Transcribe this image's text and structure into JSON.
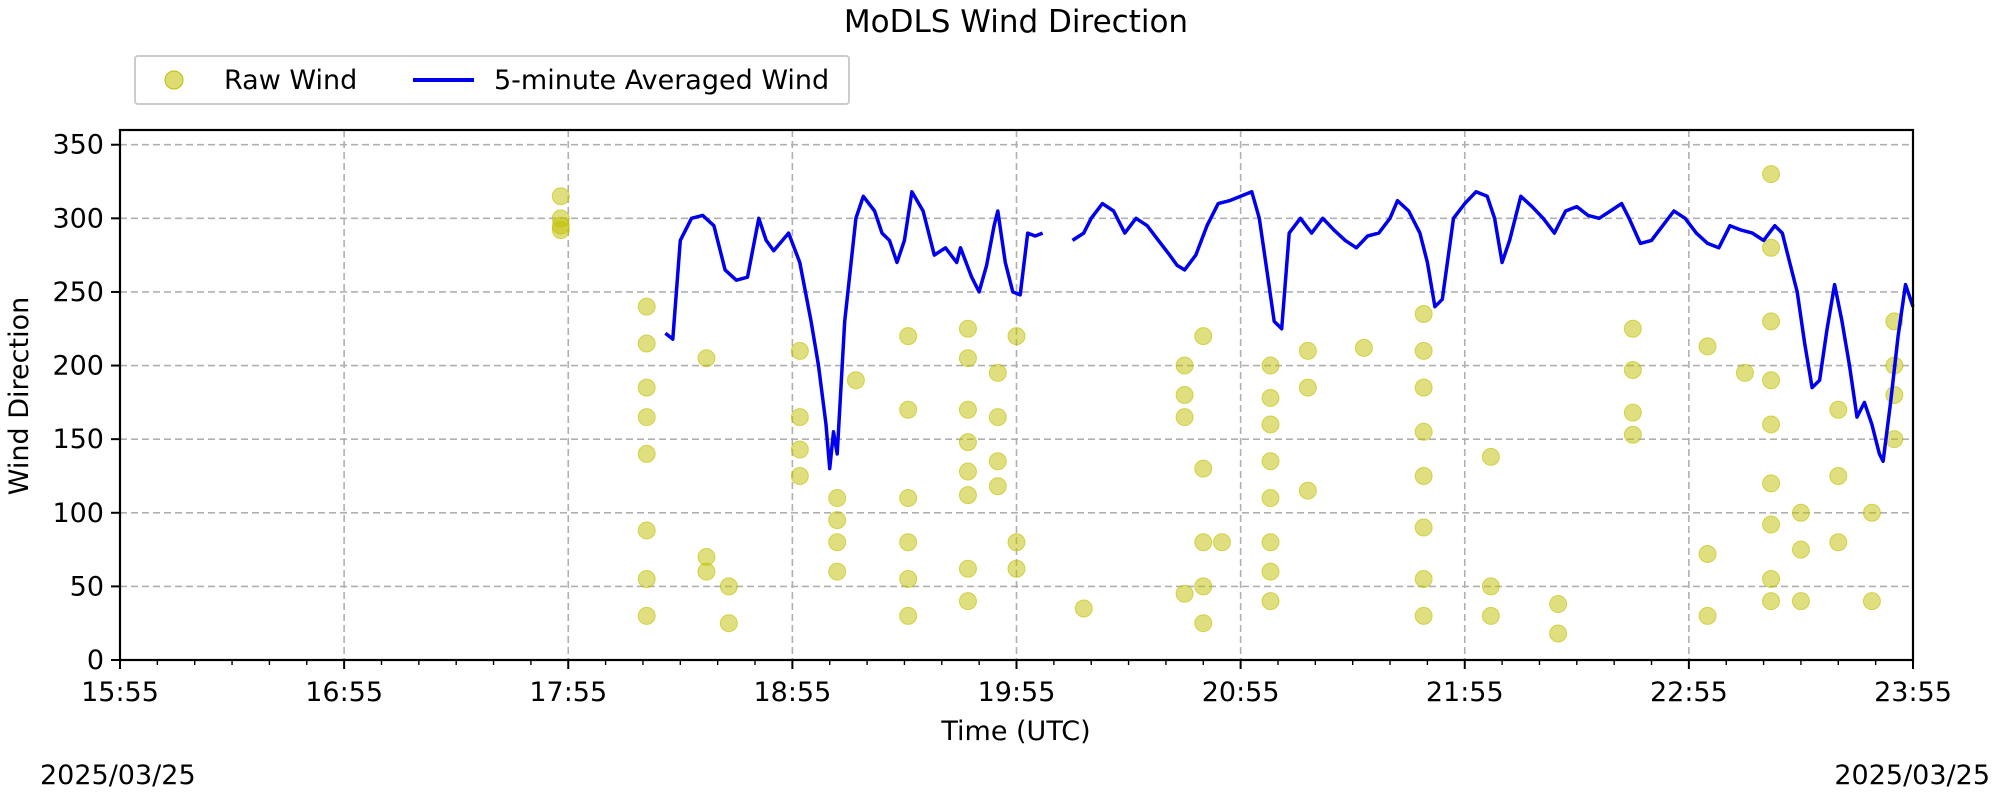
{
  "chart_data": {
    "type": "scatter",
    "title": "MoDLS Wind Direction",
    "xlabel": "Time (UTC)",
    "ylabel": "Wind Direction",
    "xlim": [
      "15:55",
      "23:55"
    ],
    "ylim": [
      0,
      360
    ],
    "x_ticks": [
      "15:55",
      "16:55",
      "17:55",
      "18:55",
      "19:55",
      "20:55",
      "21:55",
      "22:55",
      "23:55"
    ],
    "y_ticks": [
      0,
      50,
      100,
      150,
      200,
      250,
      300,
      350
    ],
    "grid": true,
    "legend": {
      "placement": "top-left, above plot",
      "entries": [
        "Raw Wind",
        "5-minute Averaged Wind"
      ]
    },
    "colors": {
      "raw": "#bfbf00",
      "avg": "#0000ee"
    },
    "series": [
      {
        "name": "Raw Wind",
        "kind": "scatter",
        "points": [
          [
            "17:53",
            315
          ],
          [
            "17:53",
            300
          ],
          [
            "17:53",
            295
          ],
          [
            "17:53",
            292
          ],
          [
            "18:16",
            240
          ],
          [
            "18:16",
            215
          ],
          [
            "18:16",
            185
          ],
          [
            "18:16",
            165
          ],
          [
            "18:16",
            140
          ],
          [
            "18:16",
            88
          ],
          [
            "18:16",
            55
          ],
          [
            "18:16",
            30
          ],
          [
            "18:32",
            205
          ],
          [
            "18:32",
            70
          ],
          [
            "18:32",
            60
          ],
          [
            "18:38",
            50
          ],
          [
            "18:38",
            25
          ],
          [
            "18:57",
            210
          ],
          [
            "18:57",
            165
          ],
          [
            "18:57",
            143
          ],
          [
            "18:57",
            125
          ],
          [
            "19:07",
            110
          ],
          [
            "19:07",
            95
          ],
          [
            "19:07",
            80
          ],
          [
            "19:07",
            60
          ],
          [
            "19:12",
            190
          ],
          [
            "19:26",
            220
          ],
          [
            "19:26",
            170
          ],
          [
            "19:26",
            110
          ],
          [
            "19:26",
            80
          ],
          [
            "19:26",
            55
          ],
          [
            "19:26",
            30
          ],
          [
            "19:42",
            225
          ],
          [
            "19:42",
            205
          ],
          [
            "19:42",
            170
          ],
          [
            "19:42",
            148
          ],
          [
            "19:42",
            128
          ],
          [
            "19:42",
            112
          ],
          [
            "19:42",
            62
          ],
          [
            "19:42",
            40
          ],
          [
            "19:50",
            195
          ],
          [
            "19:50",
            165
          ],
          [
            "19:50",
            135
          ],
          [
            "19:50",
            118
          ],
          [
            "19:55",
            220
          ],
          [
            "19:55",
            80
          ],
          [
            "19:55",
            62
          ],
          [
            "20:13",
            35
          ],
          [
            "20:40",
            200
          ],
          [
            "20:40",
            180
          ],
          [
            "20:40",
            165
          ],
          [
            "20:40",
            45
          ],
          [
            "20:45",
            220
          ],
          [
            "20:45",
            130
          ],
          [
            "20:45",
            80
          ],
          [
            "20:45",
            50
          ],
          [
            "20:45",
            25
          ],
          [
            "20:50",
            80
          ],
          [
            "21:03",
            200
          ],
          [
            "21:03",
            178
          ],
          [
            "21:03",
            160
          ],
          [
            "21:03",
            135
          ],
          [
            "21:03",
            110
          ],
          [
            "21:03",
            80
          ],
          [
            "21:03",
            60
          ],
          [
            "21:03",
            40
          ],
          [
            "21:13",
            210
          ],
          [
            "21:13",
            185
          ],
          [
            "21:13",
            115
          ],
          [
            "21:28",
            212
          ],
          [
            "21:44",
            235
          ],
          [
            "21:44",
            210
          ],
          [
            "21:44",
            185
          ],
          [
            "21:44",
            155
          ],
          [
            "21:44",
            125
          ],
          [
            "21:44",
            90
          ],
          [
            "21:44",
            55
          ],
          [
            "21:44",
            30
          ],
          [
            "22:02",
            138
          ],
          [
            "22:02",
            50
          ],
          [
            "22:02",
            30
          ],
          [
            "22:20",
            38
          ],
          [
            "22:20",
            18
          ],
          [
            "22:40",
            225
          ],
          [
            "22:40",
            197
          ],
          [
            "22:40",
            168
          ],
          [
            "22:40",
            153
          ],
          [
            "23:00",
            213
          ],
          [
            "23:00",
            72
          ],
          [
            "23:00",
            30
          ],
          [
            "23:10",
            195
          ],
          [
            "23:17",
            330
          ],
          [
            "23:17",
            280
          ],
          [
            "23:17",
            230
          ],
          [
            "23:17",
            190
          ],
          [
            "23:17",
            160
          ],
          [
            "23:17",
            120
          ],
          [
            "23:17",
            92
          ],
          [
            "23:17",
            55
          ],
          [
            "23:17",
            40
          ],
          [
            "23:25",
            100
          ],
          [
            "23:25",
            75
          ],
          [
            "23:25",
            40
          ],
          [
            "23:35",
            170
          ],
          [
            "23:35",
            125
          ],
          [
            "23:35",
            80
          ],
          [
            "23:44",
            40
          ],
          [
            "23:44",
            100
          ],
          [
            "23:50",
            230
          ],
          [
            "23:50",
            200
          ],
          [
            "23:50",
            180
          ],
          [
            "23:50",
            150
          ]
        ]
      },
      {
        "name": "5-minute Averaged Wind",
        "kind": "line",
        "points": [
          [
            "18:21",
            222
          ],
          [
            "18:23",
            218
          ],
          [
            "18:25",
            285
          ],
          [
            "18:28",
            300
          ],
          [
            "18:31",
            302
          ],
          [
            "18:34",
            295
          ],
          [
            "18:37",
            265
          ],
          [
            "18:40",
            258
          ],
          [
            "18:43",
            260
          ],
          [
            "18:46",
            300
          ],
          [
            "18:48",
            285
          ],
          [
            "18:50",
            278
          ],
          [
            "18:54",
            290
          ],
          [
            "18:57",
            270
          ],
          [
            "19:00",
            230
          ],
          [
            "19:02",
            200
          ],
          [
            "19:04",
            160
          ],
          [
            "19:05",
            130
          ],
          [
            "19:06",
            155
          ],
          [
            "19:07",
            140
          ],
          [
            "19:09",
            230
          ],
          [
            "19:12",
            300
          ],
          [
            "19:14",
            315
          ],
          [
            "19:17",
            305
          ],
          [
            "19:19",
            290
          ],
          [
            "19:21",
            285
          ],
          [
            "19:23",
            270
          ],
          [
            "19:25",
            285
          ],
          [
            "19:27",
            318
          ],
          [
            "19:30",
            305
          ],
          [
            "19:33",
            275
          ],
          [
            "19:36",
            280
          ],
          [
            "19:39",
            270
          ],
          [
            "19:40",
            280
          ],
          [
            "19:43",
            260
          ],
          [
            "19:45",
            250
          ],
          [
            "19:47",
            268
          ],
          [
            "19:49",
            295
          ],
          [
            "19:50",
            305
          ],
          [
            "19:52",
            270
          ],
          [
            "19:54",
            250
          ],
          [
            "19:56",
            248
          ],
          [
            "19:58",
            290
          ],
          [
            "20:00",
            288
          ],
          [
            "20:02",
            290
          ],
          [
            "20:10",
            285
          ],
          [
            "20:13",
            290
          ],
          [
            "20:15",
            300
          ],
          [
            "20:18",
            310
          ],
          [
            "20:21",
            305
          ],
          [
            "20:24",
            290
          ],
          [
            "20:27",
            300
          ],
          [
            "20:30",
            295
          ],
          [
            "20:33",
            285
          ],
          [
            "20:36",
            275
          ],
          [
            "20:38",
            268
          ],
          [
            "20:40",
            265
          ],
          [
            "20:43",
            275
          ],
          [
            "20:46",
            295
          ],
          [
            "20:49",
            310
          ],
          [
            "20:52",
            312
          ],
          [
            "20:55",
            315
          ],
          [
            "20:58",
            318
          ],
          [
            "21:00",
            300
          ],
          [
            "21:02",
            265
          ],
          [
            "21:04",
            230
          ],
          [
            "21:06",
            225
          ],
          [
            "21:08",
            290
          ],
          [
            "21:11",
            300
          ],
          [
            "21:14",
            290
          ],
          [
            "21:17",
            300
          ],
          [
            "21:20",
            292
          ],
          [
            "21:23",
            285
          ],
          [
            "21:26",
            280
          ],
          [
            "21:29",
            288
          ],
          [
            "21:32",
            290
          ],
          [
            "21:35",
            300
          ],
          [
            "21:37",
            312
          ],
          [
            "21:40",
            305
          ],
          [
            "21:43",
            290
          ],
          [
            "21:45",
            270
          ],
          [
            "21:47",
            240
          ],
          [
            "21:49",
            245
          ],
          [
            "21:52",
            300
          ],
          [
            "21:55",
            310
          ],
          [
            "21:58",
            318
          ],
          [
            "22:01",
            315
          ],
          [
            "22:03",
            300
          ],
          [
            "22:05",
            270
          ],
          [
            "22:07",
            285
          ],
          [
            "22:10",
            315
          ],
          [
            "22:13",
            308
          ],
          [
            "22:16",
            300
          ],
          [
            "22:19",
            290
          ],
          [
            "22:22",
            305
          ],
          [
            "22:25",
            308
          ],
          [
            "22:28",
            302
          ],
          [
            "22:31",
            300
          ],
          [
            "22:34",
            305
          ],
          [
            "22:37",
            310
          ],
          [
            "22:39",
            300
          ],
          [
            "22:42",
            283
          ],
          [
            "22:45",
            285
          ],
          [
            "22:48",
            295
          ],
          [
            "22:51",
            305
          ],
          [
            "22:54",
            300
          ],
          [
            "22:57",
            290
          ],
          [
            "23:00",
            283
          ],
          [
            "23:03",
            280
          ],
          [
            "23:06",
            295
          ],
          [
            "23:09",
            292
          ],
          [
            "23:12",
            290
          ],
          [
            "23:15",
            285
          ],
          [
            "23:18",
            295
          ],
          [
            "23:20",
            290
          ],
          [
            "23:22",
            270
          ],
          [
            "23:24",
            250
          ],
          [
            "23:26",
            215
          ],
          [
            "23:28",
            185
          ],
          [
            "23:30",
            190
          ],
          [
            "23:32",
            225
          ],
          [
            "23:34",
            255
          ],
          [
            "23:36",
            230
          ],
          [
            "23:38",
            200
          ],
          [
            "23:40",
            165
          ],
          [
            "23:42",
            175
          ],
          [
            "23:44",
            160
          ],
          [
            "23:46",
            140
          ],
          [
            "23:47",
            135
          ],
          [
            "23:49",
            175
          ],
          [
            "23:51",
            220
          ],
          [
            "23:53",
            255
          ],
          [
            "23:55",
            240
          ]
        ]
      }
    ],
    "date_left": "2025/03/25",
    "date_right": "2025/03/25"
  }
}
